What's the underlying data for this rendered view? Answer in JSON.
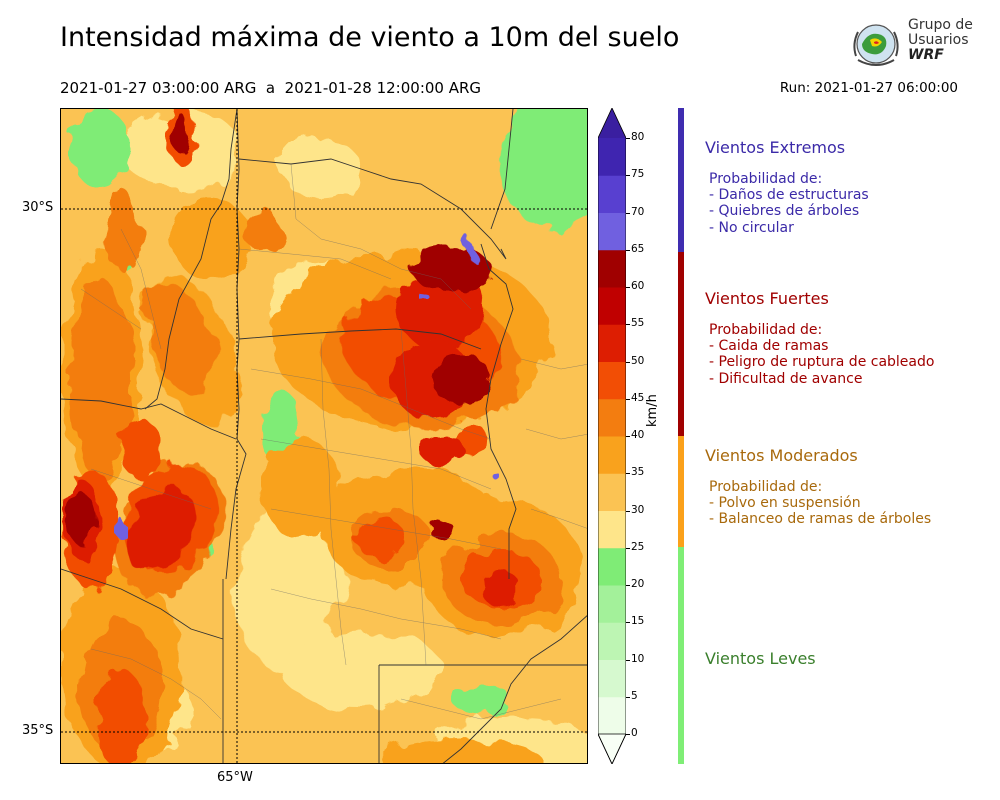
{
  "header": {
    "title": "Intensidad máxima de viento a 10m del suelo",
    "period": "2021-01-27 03:00:00 ARG  a  2021-01-28 12:00:00 ARG",
    "run": "Run: 2021-01-27 06:00:00"
  },
  "logo": {
    "line1": "Grupo de",
    "line2": "Usuarios",
    "line3": "WRF"
  },
  "map": {
    "lat_labels": [
      "30°S",
      "35°S"
    ],
    "lon_labels": [
      "65°W"
    ],
    "field": "Intensidad máxima de viento a 10m del suelo",
    "units": "km/h"
  },
  "colorbar": {
    "unit": "km/h",
    "ticks": [
      "80",
      "75",
      "70",
      "65",
      "60",
      "55",
      "50",
      "45",
      "40",
      "35",
      "30",
      "25",
      "20",
      "15",
      "10",
      "5",
      "0"
    ],
    "levels": [
      {
        "min": 0,
        "max": 5,
        "color": "#eefde9"
      },
      {
        "min": 5,
        "max": 10,
        "color": "#d6f9cf"
      },
      {
        "min": 10,
        "max": 15,
        "color": "#bdf5b3"
      },
      {
        "min": 15,
        "max": 20,
        "color": "#a3f19a"
      },
      {
        "min": 20,
        "max": 25,
        "color": "#7fec76"
      },
      {
        "min": 25,
        "max": 30,
        "color": "#fee58a"
      },
      {
        "min": 30,
        "max": 35,
        "color": "#fbc353"
      },
      {
        "min": 35,
        "max": 40,
        "color": "#f9a21d"
      },
      {
        "min": 40,
        "max": 45,
        "color": "#f37d10"
      },
      {
        "min": 45,
        "max": 50,
        "color": "#f24e05"
      },
      {
        "min": 50,
        "max": 55,
        "color": "#dd1e02"
      },
      {
        "min": 55,
        "max": 60,
        "color": "#c00000"
      },
      {
        "min": 60,
        "max": 65,
        "color": "#a00000"
      },
      {
        "min": 65,
        "max": 70,
        "color": "#7060e0"
      },
      {
        "min": 70,
        "max": 75,
        "color": "#5840d0"
      },
      {
        "min": 75,
        "max": 80,
        "color": "#3f25b0"
      }
    ],
    "extend_low_color": "#f8fff6",
    "extend_high_color": "#3a1fa0"
  },
  "categories": [
    {
      "title": "Vientos Extremos",
      "color": "#3f2db0",
      "text_color": "#3b2aa8",
      "desc": [
        "Probabilidad de:",
        "- Daños de estructuras",
        "- Quiebres de árboles",
        "- No circular"
      ]
    },
    {
      "title": "Vientos Fuertes",
      "color": "#a00000",
      "text_color": "#a00000",
      "desc": [
        "Probabilidad de:",
        "- Caida de ramas",
        "- Peligro de ruptura de cableado",
        "- Dificultad de avance"
      ]
    },
    {
      "title": "Vientos Moderados",
      "color": "#fba11a",
      "text_color": "#a8690c",
      "desc": [
        "Probabilidad de:",
        "- Polvo en suspensión",
        "- Balanceo de ramas de árboles"
      ]
    },
    {
      "title": "Vientos Leves",
      "color": "#7fee76",
      "text_color": "#3a7f2c",
      "desc": []
    }
  ]
}
